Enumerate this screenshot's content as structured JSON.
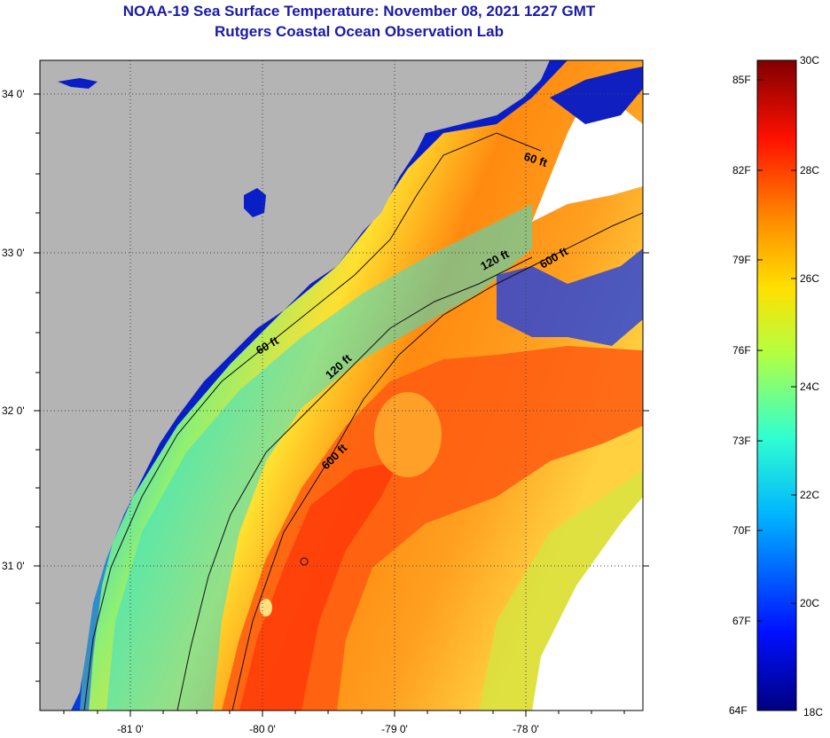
{
  "title_line1": "NOAA-19 Sea Surface Temperature:  November 08, 2021 1227 GMT",
  "title_line2": "Rutgers Coastal Ocean Observation Lab",
  "lat_labels": [
    "34 0'",
    "33 0'",
    "32 0'",
    "31 0'"
  ],
  "lon_labels": [
    "-81 0'",
    "-80 0'",
    "-79 0'",
    "-78 0'"
  ],
  "depth_labels": [
    "60 ft",
    "60 ft",
    "120 ft",
    "120 ft",
    "600 ft",
    "600 ft"
  ],
  "colorbar": {
    "fahrenheit": [
      "85F",
      "82F",
      "79F",
      "76F",
      "73F",
      "70F",
      "67F",
      "64F"
    ],
    "celsius": [
      "30C",
      "28C",
      "26C",
      "24C",
      "22C",
      "20C",
      "18C"
    ]
  },
  "colors": {
    "land": "#b4b4b4",
    "title": "#1a1aa6",
    "cold": "#00008c",
    "warm": "#ff3000"
  }
}
